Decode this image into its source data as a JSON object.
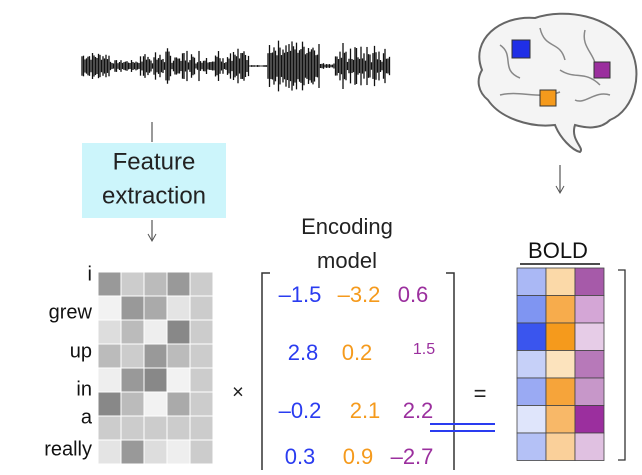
{
  "feature_box": {
    "lines": [
      "Feature",
      "extraction"
    ]
  },
  "encoding_model": {
    "lines": [
      "Encoding",
      "model"
    ],
    "rows": [
      [
        "–1.5",
        "–3.2",
        "0.6"
      ],
      [
        "2.8",
        "0.2",
        "1.5"
      ],
      [
        "–0.2",
        "2.1",
        "2.2"
      ],
      [
        "0.3",
        "0.9",
        "–2.7"
      ]
    ]
  },
  "words": [
    "i",
    "grew",
    "up",
    "in",
    "a",
    "really"
  ],
  "operators": {
    "times": "×",
    "equals": "="
  },
  "bold": {
    "label": "BOLD"
  }
}
